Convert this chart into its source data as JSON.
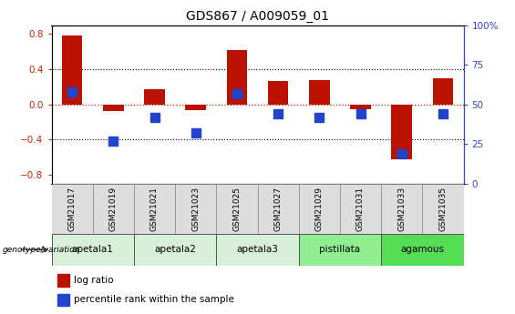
{
  "title": "GDS867 / A009059_01",
  "samples": [
    "GSM21017",
    "GSM21019",
    "GSM21021",
    "GSM21023",
    "GSM21025",
    "GSM21027",
    "GSM21029",
    "GSM21031",
    "GSM21033",
    "GSM21035"
  ],
  "log_ratio": [
    0.78,
    -0.08,
    0.17,
    -0.06,
    0.62,
    0.27,
    0.28,
    -0.05,
    -0.62,
    0.3
  ],
  "percentile_rank": [
    58,
    27,
    42,
    32,
    57,
    44,
    42,
    44,
    19,
    44
  ],
  "groups": [
    {
      "label": "apetala1",
      "start": 0,
      "end": 2,
      "color": "#d8efd8"
    },
    {
      "label": "apetala2",
      "start": 2,
      "end": 4,
      "color": "#d8efd8"
    },
    {
      "label": "apetala3",
      "start": 4,
      "end": 6,
      "color": "#d8efd8"
    },
    {
      "label": "pistillata",
      "start": 6,
      "end": 8,
      "color": "#90ee90"
    },
    {
      "label": "agamous",
      "start": 8,
      "end": 10,
      "color": "#55dd55"
    }
  ],
  "ylim_left": [
    -0.9,
    0.9
  ],
  "ylim_right": [
    0,
    100
  ],
  "yticks_left": [
    -0.8,
    -0.4,
    0.0,
    0.4,
    0.8
  ],
  "yticks_right": [
    0,
    25,
    50,
    75,
    100
  ],
  "bar_color": "#bb1100",
  "dot_color": "#2244cc",
  "bar_width": 0.5,
  "dot_size": 45,
  "hline_color": "#cc2200",
  "bg_color": "white",
  "left_axis_color": "#cc2200",
  "right_axis_color": "#3344cc",
  "sample_bg_color": "#dddddd",
  "genotype_label": "genotype/variation",
  "legend_bar": "log ratio",
  "legend_dot": "percentile rank within the sample"
}
